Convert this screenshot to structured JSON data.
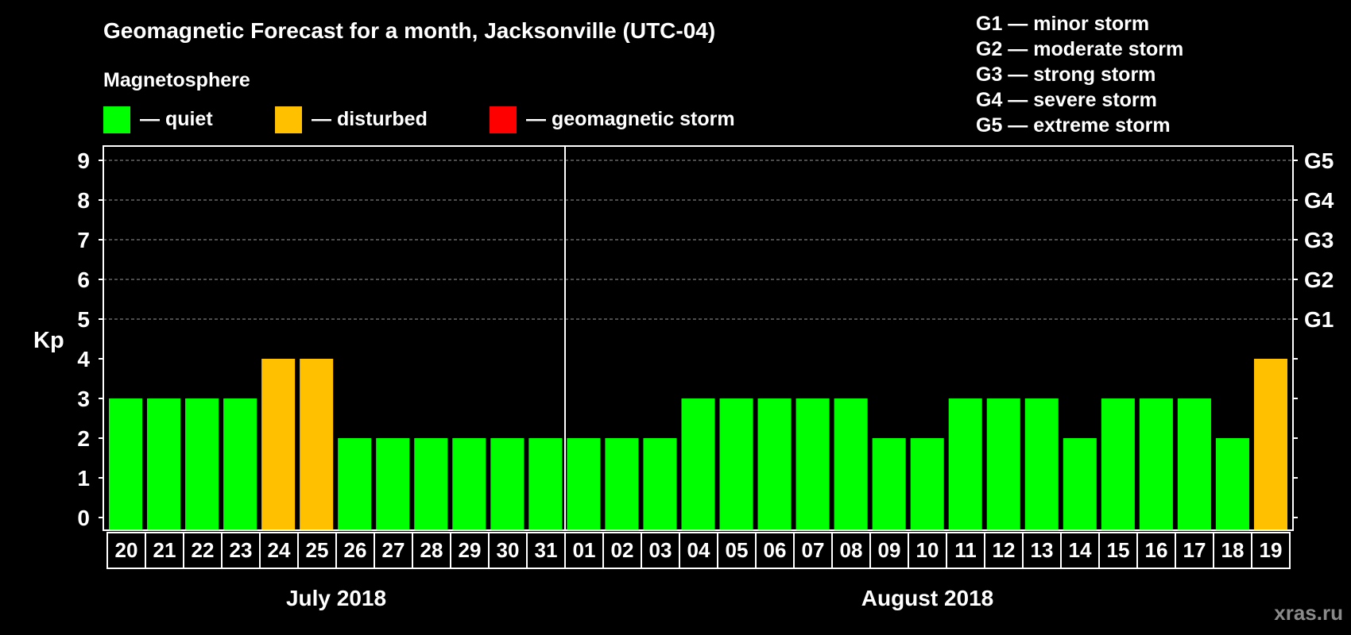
{
  "title": "Geomagnetic Forecast for a month, Jacksonville (UTC-04)",
  "magnetosphere_label": "Magnetosphere",
  "legend": [
    {
      "label": "— quiet",
      "color": "#00ff00"
    },
    {
      "label": "— disturbed",
      "color": "#ffc000"
    },
    {
      "label": "— geomagnetic storm",
      "color": "#ff0000"
    }
  ],
  "storm_scale": [
    "G1 — minor storm",
    "G2 — moderate storm",
    "G3 — strong storm",
    "G4 — severe storm",
    "G5 — extreme storm"
  ],
  "watermark": "xras.ru",
  "chart_data": {
    "type": "bar",
    "ylabel": "Kp",
    "ylim": [
      0,
      9
    ],
    "yticks": [
      "0",
      "1",
      "2",
      "3",
      "4",
      "5",
      "6",
      "7",
      "8",
      "9"
    ],
    "right_axis_labels": [
      {
        "kp": 5,
        "label": "G1"
      },
      {
        "kp": 6,
        "label": "G2"
      },
      {
        "kp": 7,
        "label": "G3"
      },
      {
        "kp": 8,
        "label": "G4"
      },
      {
        "kp": 9,
        "label": "G5"
      }
    ],
    "months": [
      {
        "label": "July 2018",
        "count": 12
      },
      {
        "label": "August 2018",
        "count": 19
      }
    ],
    "categories": [
      "20",
      "21",
      "22",
      "23",
      "24",
      "25",
      "26",
      "27",
      "28",
      "29",
      "30",
      "31",
      "01",
      "02",
      "03",
      "04",
      "05",
      "06",
      "07",
      "08",
      "09",
      "10",
      "11",
      "12",
      "13",
      "14",
      "15",
      "16",
      "17",
      "18",
      "19"
    ],
    "values": [
      3,
      3,
      3,
      3,
      4,
      4,
      2,
      2,
      2,
      2,
      2,
      2,
      2,
      2,
      2,
      3,
      3,
      3,
      3,
      3,
      2,
      2,
      3,
      3,
      3,
      2,
      3,
      3,
      3,
      2,
      4
    ],
    "colors": {
      "quiet": "#00ff00",
      "disturbed": "#ffc000",
      "storm": "#ff0000"
    }
  }
}
